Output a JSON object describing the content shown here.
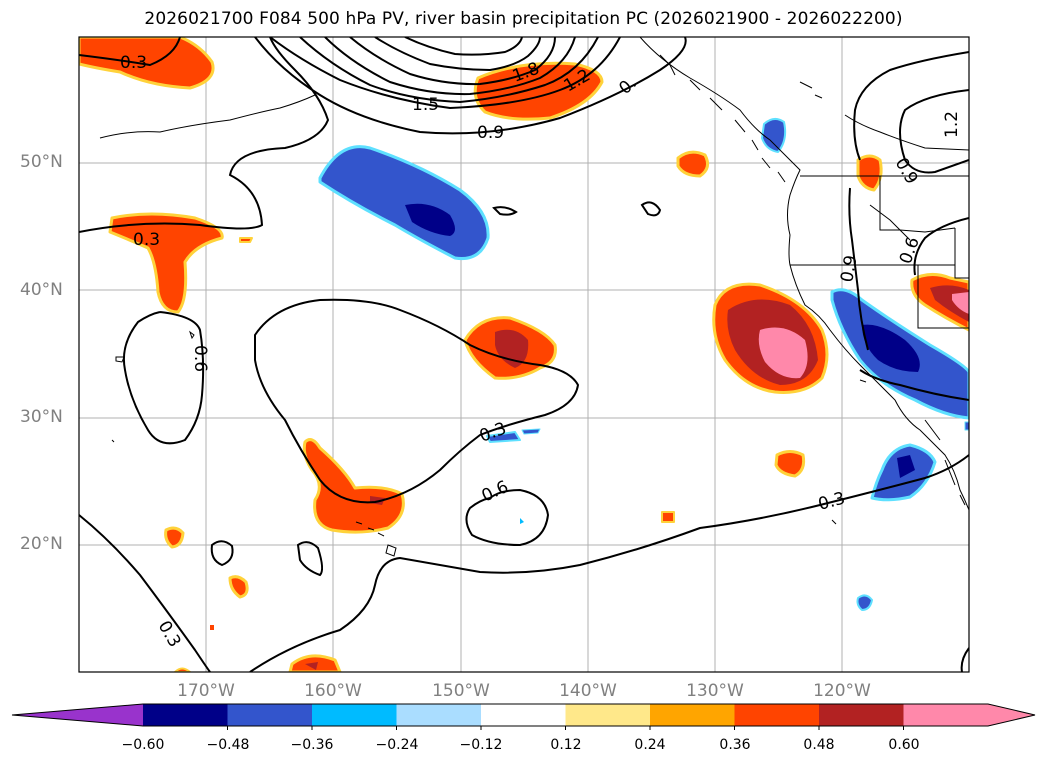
{
  "title": "2026021700 F084 500 hPa PV, river basin precipitation PC (2026021900 - 2026022200)",
  "lat_labels": [
    "50°N",
    "40°N",
    "30°N",
    "20°N"
  ],
  "lon_labels": [
    "170°W",
    "160°W",
    "150°W",
    "140°W",
    "130°W",
    "120°W"
  ],
  "contour_labels": [
    "0.3",
    "1.8",
    "1.2",
    "0.",
    "1.5",
    "0.9",
    "1.2",
    "0.9",
    "0.3",
    "0.6",
    "0.9",
    "0.6",
    "0.3",
    "0.6",
    "0.3",
    "0.3"
  ],
  "colorbar": {
    "ticks": [
      "−0.60",
      "−0.48",
      "−0.36",
      "−0.24",
      "−0.12",
      "0.12",
      "0.24",
      "0.36",
      "0.48",
      "0.60"
    ],
    "colors": [
      "#9933cc",
      "#000088",
      "#3355cc",
      "#00bbff",
      "#aaddff",
      "#ffffff",
      "#ffe88a",
      "#ffa500",
      "#ff4400",
      "#b22222",
      "#ff88aa",
      "#ff88aa"
    ]
  }
}
